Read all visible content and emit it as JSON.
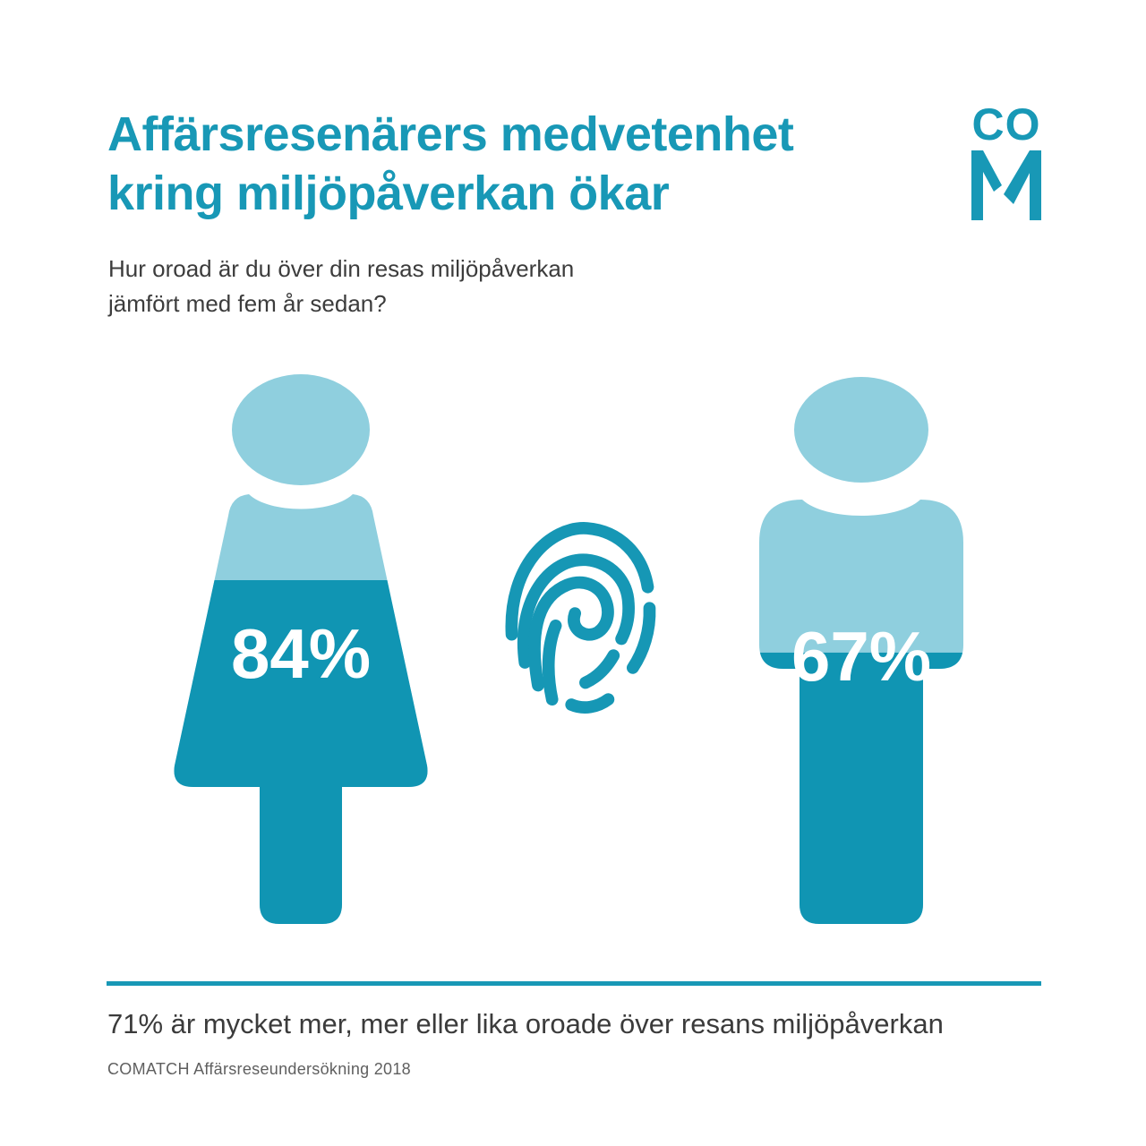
{
  "header": {
    "title_line1": "Affärsresenärers medvetenhet",
    "title_line2": "kring miljöpåverkan ökar",
    "question_line1": "Hur oroad är du över din resas miljöpåverkan",
    "question_line2": "jämfört med fem år sedan?"
  },
  "logo": {
    "top_text": "CO",
    "bottom_letter": "M"
  },
  "chart_data": {
    "type": "pictogram",
    "title": "Affärsresenärers medvetenhet kring miljöpåverkan ökar",
    "subtitle": "Hur oroad är du över din resas miljöpåverkan jämfört med fem år sedan?",
    "series": [
      {
        "icon": "woman-figure",
        "value": 84,
        "label": "84%"
      },
      {
        "icon": "man-figure",
        "value": 67,
        "label": "67%"
      }
    ],
    "center_icon": "fingerprint-icon",
    "unit": "%",
    "annotation": "71% är mycket mer, mer eller lika oroade över resans miljöpåverkan",
    "source": "COMATCH Affärsreseundersökning 2018",
    "colors": {
      "filled": "#1095B3",
      "unfilled": "#8FCFDE",
      "accent": "#1898B6"
    }
  },
  "footer": {
    "statement": "71% är mycket mer, mer eller lika oroade över resans miljöpåverkan",
    "source": "COMATCH Affärsreseundersökning 2018"
  },
  "colors": {
    "teal": "#1898B6",
    "figure_fill": "#1095B3",
    "figure_light": "#8FCFDE",
    "text_dark": "#3b3b3b",
    "text_gray": "#5f5f5f"
  }
}
